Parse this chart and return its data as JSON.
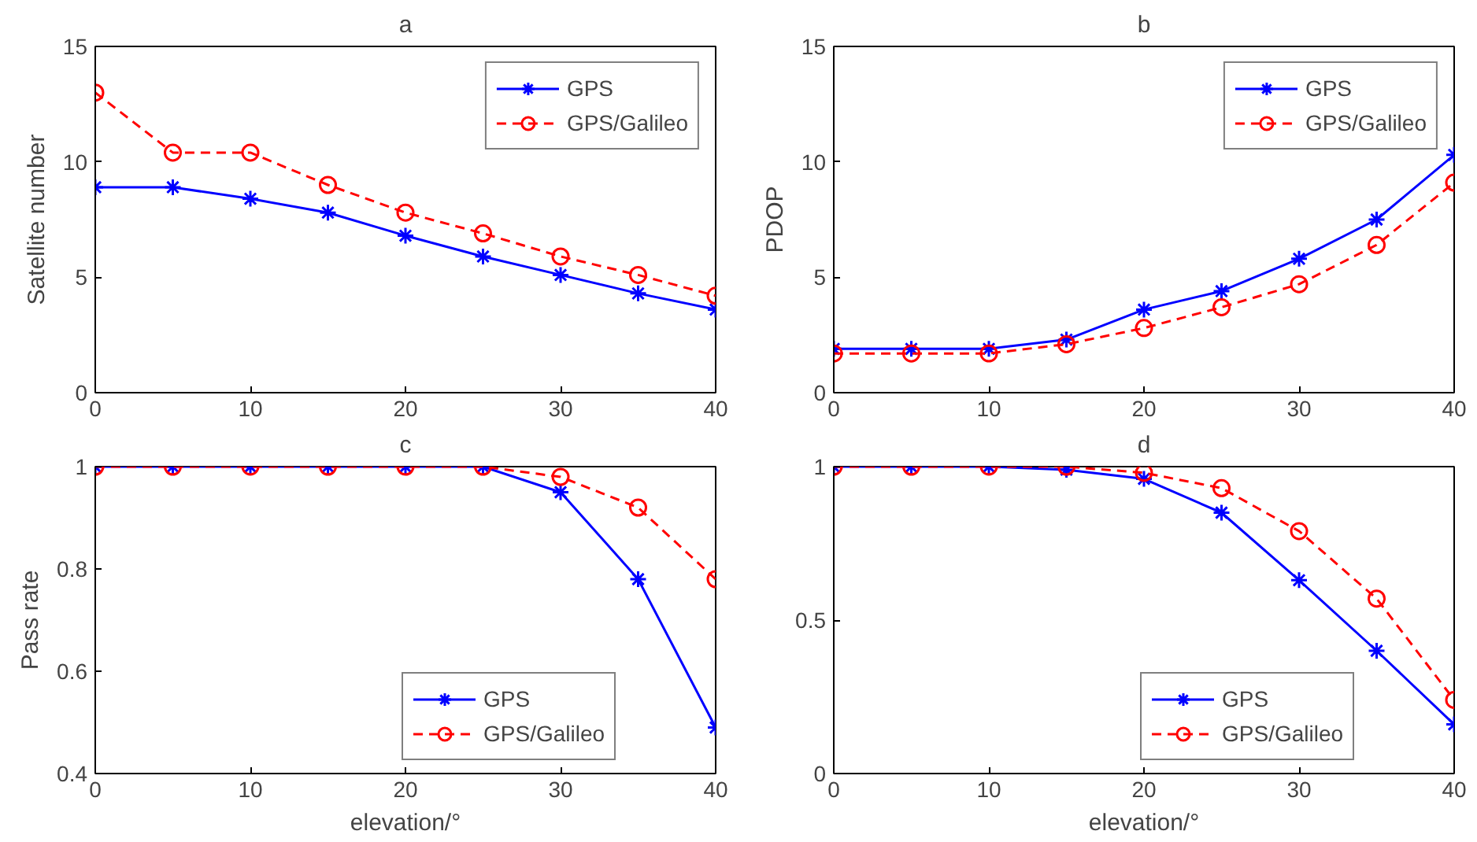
{
  "chart_data": [
    {
      "type": "line",
      "title": "a",
      "ylabel": "Satellite number",
      "x": [
        0,
        5,
        10,
        15,
        20,
        25,
        30,
        35,
        40
      ],
      "xlim": [
        0,
        40
      ],
      "xticks": [
        0,
        10,
        20,
        30,
        40
      ],
      "ylim": [
        0,
        15
      ],
      "yticks": [
        0,
        5,
        10,
        15
      ],
      "legend": "top right",
      "grid": false,
      "series": [
        {
          "name": "GPS",
          "color": "#0000ff",
          "marker": "cross",
          "line_style": "solid",
          "values": [
            8.9,
            8.9,
            8.4,
            7.8,
            6.8,
            5.9,
            5.1,
            4.3,
            3.6
          ]
        },
        {
          "name": "GPS/Galileo",
          "color": "#ff0000",
          "marker": "circle",
          "line_style": "dashed",
          "values": [
            13,
            10.4,
            10.4,
            9,
            7.8,
            6.9,
            5.9,
            5.1,
            4.2
          ]
        }
      ]
    },
    {
      "type": "line",
      "title": "b",
      "ylabel": "PDOP",
      "x": [
        0,
        5,
        10,
        15,
        20,
        25,
        30,
        35,
        40
      ],
      "xlim": [
        0,
        40
      ],
      "xticks": [
        0,
        10,
        20,
        30,
        40
      ],
      "ylim": [
        0,
        15
      ],
      "yticks": [
        0,
        5,
        10,
        15
      ],
      "legend": "top right",
      "grid": false,
      "series": [
        {
          "name": "GPS",
          "color": "#0000ff",
          "marker": "cross",
          "line_style": "solid",
          "values": [
            1.9,
            1.9,
            1.9,
            2.3,
            3.6,
            4.4,
            5.8,
            7.5,
            10.3
          ]
        },
        {
          "name": "GPS/Galileo",
          "color": "#ff0000",
          "marker": "circle",
          "line_style": "dashed",
          "values": [
            1.7,
            1.7,
            1.7,
            2.1,
            2.8,
            3.7,
            4.7,
            6.4,
            9.1
          ]
        }
      ]
    },
    {
      "type": "line",
      "title": "c",
      "ylabel": "Pass rate",
      "xlabel": "elevation/°",
      "x": [
        0,
        5,
        10,
        15,
        20,
        25,
        30,
        35,
        40
      ],
      "xlim": [
        0,
        40
      ],
      "xticks": [
        0,
        10,
        20,
        30,
        40
      ],
      "ylim": [
        0.4,
        1.0
      ],
      "yticks": [
        0.4,
        0.6,
        0.8,
        {
          "value": 1,
          "label": "1"
        }
      ],
      "legend": "bottom right",
      "grid": false,
      "series": [
        {
          "name": "GPS",
          "color": "#0000ff",
          "marker": "cross",
          "line_style": "solid",
          "values": [
            1,
            1,
            1,
            1,
            1,
            1,
            0.95,
            0.78,
            0.49
          ]
        },
        {
          "name": "GPS/Galileo",
          "color": "#ff0000",
          "marker": "circle",
          "line_style": "dashed",
          "values": [
            1,
            1,
            1,
            1,
            1,
            1,
            0.98,
            0.92,
            0.78
          ]
        }
      ]
    },
    {
      "type": "line",
      "title": "d",
      "xlabel": "elevation/°",
      "x": [
        0,
        5,
        10,
        15,
        20,
        25,
        30,
        35,
        40
      ],
      "xlim": [
        0,
        40
      ],
      "xticks": [
        0,
        10,
        20,
        30,
        40
      ],
      "ylim": [
        0,
        1
      ],
      "yticks": [
        0,
        0.5,
        {
          "value": 1,
          "label": "1"
        }
      ],
      "legend": "bottom right",
      "grid": false,
      "series": [
        {
          "name": "GPS",
          "color": "#0000ff",
          "marker": "cross",
          "line_style": "solid",
          "values": [
            1,
            1,
            1,
            0.99,
            0.96,
            0.85,
            0.63,
            0.4,
            0.16
          ]
        },
        {
          "name": "GPS/Galileo",
          "color": "#ff0000",
          "marker": "circle",
          "line_style": "dashed",
          "values": [
            1,
            1,
            1,
            1,
            0.98,
            0.93,
            0.79,
            0.57,
            0.24
          ]
        }
      ]
    }
  ]
}
